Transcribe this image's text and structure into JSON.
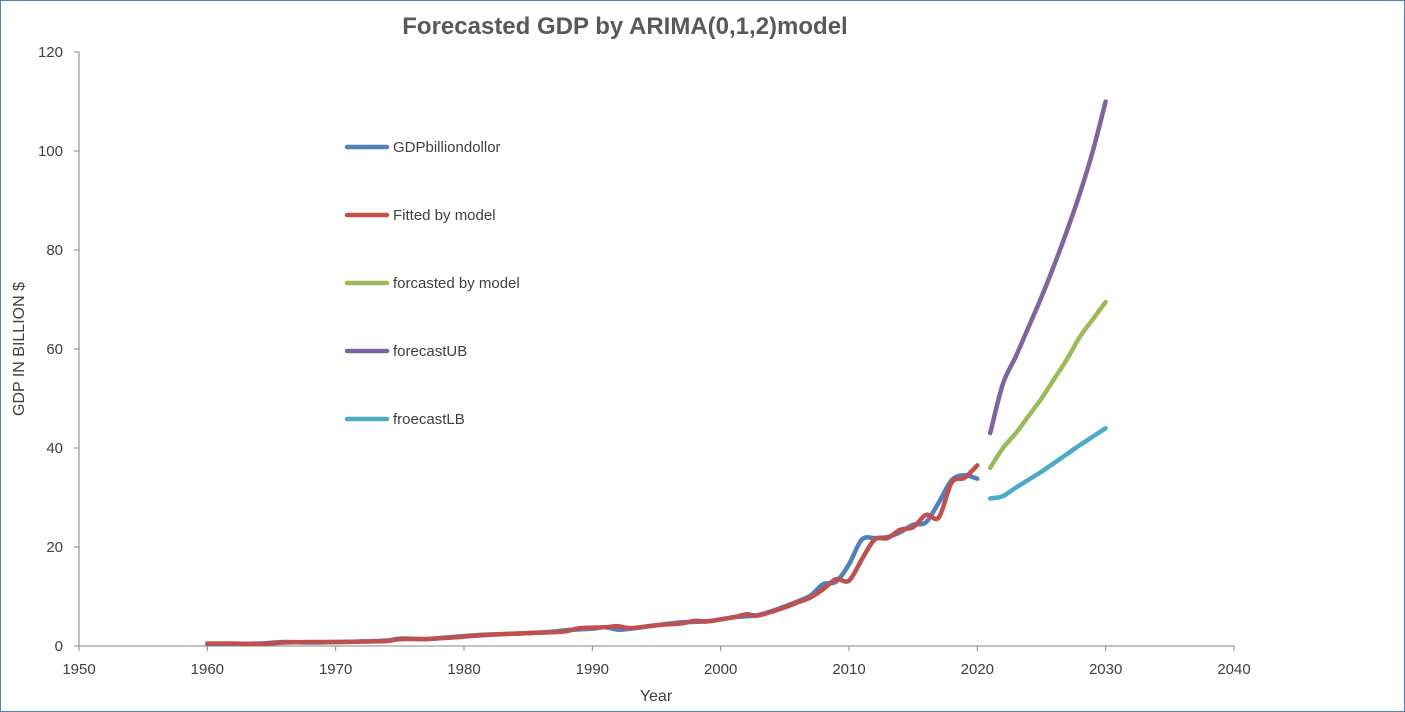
{
  "chart_data": {
    "type": "line",
    "title": "Forecasted GDP by ARIMA(0,1,2)model",
    "xlabel": "Year",
    "ylabel": "GDP IN BILLION $",
    "xlim": [
      1950,
      2040
    ],
    "ylim": [
      0,
      120
    ],
    "xticks": [
      1950,
      1960,
      1970,
      1980,
      1990,
      2000,
      2010,
      2020,
      2030,
      2040
    ],
    "yticks": [
      0,
      20,
      40,
      60,
      80,
      100,
      120
    ],
    "grid": false,
    "legend_position": "top-left",
    "series": [
      {
        "name": "GDPbilliondollor",
        "color": "#4f81bd",
        "points": [
          [
            1960,
            0.4
          ],
          [
            1962,
            0.4
          ],
          [
            1964,
            0.5
          ],
          [
            1966,
            0.8
          ],
          [
            1968,
            0.7
          ],
          [
            1970,
            0.8
          ],
          [
            1972,
            0.9
          ],
          [
            1974,
            1.1
          ],
          [
            1975,
            1.5
          ],
          [
            1977,
            1.4
          ],
          [
            1979,
            1.8
          ],
          [
            1981,
            2.2
          ],
          [
            1983,
            2.4
          ],
          [
            1985,
            2.6
          ],
          [
            1987,
            2.9
          ],
          [
            1988,
            3.2
          ],
          [
            1990,
            3.5
          ],
          [
            1991,
            3.8
          ],
          [
            1992,
            3.3
          ],
          [
            1993,
            3.5
          ],
          [
            1995,
            4.2
          ],
          [
            1997,
            4.8
          ],
          [
            1999,
            5.0
          ],
          [
            2001,
            5.8
          ],
          [
            2003,
            6.3
          ],
          [
            2005,
            8.0
          ],
          [
            2006,
            9.0
          ],
          [
            2007,
            10.2
          ],
          [
            2008,
            12.5
          ],
          [
            2009,
            13.0
          ],
          [
            2010,
            16.5
          ],
          [
            2011,
            21.5
          ],
          [
            2012,
            21.8
          ],
          [
            2013,
            22.0
          ],
          [
            2014,
            23.0
          ],
          [
            2015,
            24.5
          ],
          [
            2016,
            25.0
          ],
          [
            2017,
            29.0
          ],
          [
            2018,
            33.5
          ],
          [
            2019,
            34.5
          ],
          [
            2020,
            33.8
          ]
        ]
      },
      {
        "name": "Fitted by model",
        "color": "#c0504d",
        "points": [
          [
            1960,
            0.5
          ],
          [
            1962,
            0.5
          ],
          [
            1964,
            0.4
          ],
          [
            1966,
            0.7
          ],
          [
            1968,
            0.8
          ],
          [
            1970,
            0.8
          ],
          [
            1972,
            0.9
          ],
          [
            1974,
            1.0
          ],
          [
            1975,
            1.4
          ],
          [
            1977,
            1.4
          ],
          [
            1979,
            1.7
          ],
          [
            1981,
            2.1
          ],
          [
            1983,
            2.4
          ],
          [
            1985,
            2.6
          ],
          [
            1987,
            2.8
          ],
          [
            1988,
            3.0
          ],
          [
            1989,
            3.6
          ],
          [
            1991,
            3.8
          ],
          [
            1992,
            4.0
          ],
          [
            1993,
            3.6
          ],
          [
            1995,
            4.2
          ],
          [
            1997,
            4.6
          ],
          [
            1998,
            5.1
          ],
          [
            1999,
            5.0
          ],
          [
            2001,
            5.8
          ],
          [
            2002,
            6.4
          ],
          [
            2003,
            6.2
          ],
          [
            2005,
            7.8
          ],
          [
            2006,
            8.8
          ],
          [
            2007,
            9.8
          ],
          [
            2008,
            11.5
          ],
          [
            2009,
            13.5
          ],
          [
            2010,
            13.2
          ],
          [
            2011,
            17.5
          ],
          [
            2012,
            21.5
          ],
          [
            2013,
            21.8
          ],
          [
            2014,
            23.5
          ],
          [
            2015,
            24.0
          ],
          [
            2016,
            26.5
          ],
          [
            2017,
            26.0
          ],
          [
            2018,
            33.0
          ],
          [
            2019,
            34.0
          ],
          [
            2020,
            36.5
          ]
        ]
      },
      {
        "name": "forcasted by model",
        "color": "#9bbb59",
        "points": [
          [
            2021,
            36.0
          ],
          [
            2022,
            40.0
          ],
          [
            2023,
            43.0
          ],
          [
            2024,
            46.5
          ],
          [
            2025,
            50.0
          ],
          [
            2026,
            54.0
          ],
          [
            2027,
            58.0
          ],
          [
            2028,
            62.5
          ],
          [
            2029,
            66.0
          ],
          [
            2030,
            69.5
          ]
        ]
      },
      {
        "name": "forecastUB",
        "color": "#8064a2",
        "points": [
          [
            2021,
            43.0
          ],
          [
            2022,
            53.0
          ],
          [
            2023,
            58.5
          ],
          [
            2024,
            64.5
          ],
          [
            2025,
            70.5
          ],
          [
            2026,
            77.0
          ],
          [
            2027,
            84.0
          ],
          [
            2028,
            91.5
          ],
          [
            2029,
            100.0
          ],
          [
            2030,
            110.0
          ]
        ]
      },
      {
        "name": "froecastLB",
        "color": "#4bacc6",
        "points": [
          [
            2021,
            29.8
          ],
          [
            2022,
            30.3
          ],
          [
            2023,
            32.0
          ],
          [
            2024,
            33.6
          ],
          [
            2025,
            35.2
          ],
          [
            2026,
            37.0
          ],
          [
            2027,
            38.8
          ],
          [
            2028,
            40.6
          ],
          [
            2029,
            42.3
          ],
          [
            2030,
            44.0
          ]
        ]
      }
    ]
  }
}
